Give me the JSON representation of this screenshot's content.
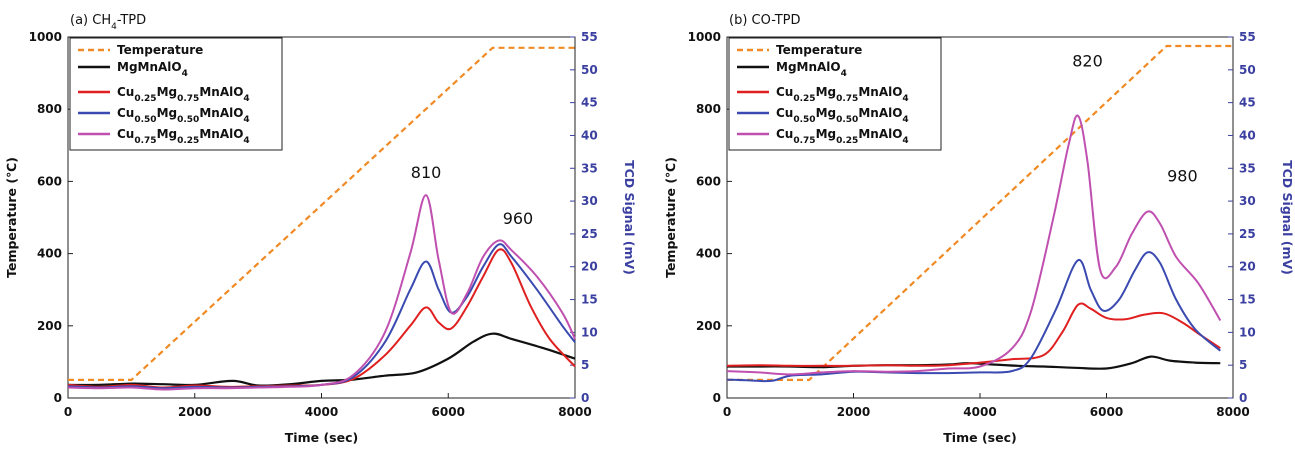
{
  "chart_data": [
    {
      "type": "line",
      "title": "(a) CH",
      "title_sub": "4",
      "title_rest": "-TPD",
      "xlabel": "Time (sec)",
      "ylabel": "Temperature (℃)",
      "y2label": "TCD Signal (mV)",
      "xlim": [
        0,
        8000
      ],
      "ylim": [
        0,
        1000
      ],
      "y2lim": [
        0,
        55
      ],
      "xticks": [
        0,
        2000,
        4000,
        6000,
        8000
      ],
      "yticks": [
        0,
        200,
        400,
        600,
        800,
        1000
      ],
      "y2ticks": [
        0,
        5,
        10,
        15,
        20,
        25,
        30,
        35,
        40,
        45,
        50,
        55
      ],
      "legend_position": "top-left",
      "temperature": {
        "name": "Temperature",
        "color": "#f08a24",
        "x": [
          0,
          1000,
          6700,
          8000
        ],
        "y": [
          50,
          50,
          970,
          970
        ]
      },
      "series": [
        {
          "name": [
            "MgMnAlO",
            "4",
            ""
          ],
          "color": "#111111",
          "x": [
            0,
            500,
            1000,
            1500,
            2000,
            2600,
            3000,
            3500,
            4000,
            4500,
            5000,
            5500,
            6000,
            6400,
            6700,
            7000,
            7500,
            8000
          ],
          "y": [
            2.0,
            2.0,
            2.2,
            2.1,
            2.0,
            2.6,
            1.9,
            2.1,
            2.6,
            2.8,
            3.4,
            3.9,
            6.0,
            8.6,
            9.8,
            9.0,
            7.6,
            6.0
          ]
        },
        {
          "name": [
            "Cu",
            "0.25",
            "Mg",
            "0.75",
            "MnAlO",
            "4"
          ],
          "color": "#e02020",
          "x": [
            0,
            500,
            1000,
            1500,
            2000,
            2500,
            3000,
            3500,
            4000,
            4500,
            5000,
            5400,
            5650,
            5850,
            6050,
            6300,
            6550,
            6800,
            7000,
            7300,
            7600,
            8000
          ],
          "y": [
            2.0,
            1.7,
            2.0,
            1.6,
            1.9,
            1.7,
            1.8,
            1.9,
            2.0,
            2.9,
            6.5,
            11.0,
            13.8,
            11.5,
            10.6,
            14.0,
            18.5,
            22.6,
            20.5,
            14.0,
            9.0,
            4.8
          ]
        },
        {
          "name": [
            "Cu",
            "0.50",
            "Mg",
            "0.50",
            "MnAlO",
            "4"
          ],
          "color": "#3a4ab0",
          "x": [
            0,
            500,
            1000,
            1500,
            2000,
            2500,
            3000,
            3500,
            4000,
            4500,
            5000,
            5400,
            5650,
            5850,
            6050,
            6300,
            6550,
            6800,
            7000,
            7400,
            7800,
            8000
          ],
          "y": [
            1.8,
            1.6,
            1.8,
            1.5,
            1.7,
            1.6,
            1.7,
            1.8,
            2.0,
            3.2,
            8.5,
            16.5,
            20.8,
            16.5,
            13.0,
            15.5,
            20.0,
            23.4,
            21.5,
            16.5,
            11.0,
            8.5
          ]
        },
        {
          "name": [
            "Cu",
            "0.75",
            "Mg",
            "0.25",
            "MnAlO",
            "4"
          ],
          "color": "#c050b0",
          "x": [
            0,
            500,
            1000,
            1500,
            2000,
            2500,
            3000,
            3500,
            4000,
            4500,
            5000,
            5400,
            5650,
            5850,
            6050,
            6300,
            6550,
            6800,
            7000,
            7400,
            7800,
            8000
          ],
          "y": [
            1.6,
            1.5,
            1.6,
            1.3,
            1.5,
            1.5,
            1.6,
            1.7,
            2.0,
            3.5,
            10.0,
            22.0,
            30.9,
            21.0,
            13.0,
            16.0,
            21.5,
            24.0,
            22.5,
            18.5,
            13.0,
            9.0
          ]
        }
      ],
      "annotations": [
        {
          "text": "810",
          "x": 5650,
          "y2": 33.5
        },
        {
          "text": "960",
          "x": 7100,
          "y2": 26.5
        }
      ]
    },
    {
      "type": "line",
      "title": "(b) CO-TPD",
      "title_sub": "",
      "title_rest": "",
      "xlabel": "Time (sec)",
      "ylabel": "Temperature (℃)",
      "y2label": "TCD Signal (mV)",
      "xlim": [
        0,
        8000
      ],
      "ylim": [
        0,
        1000
      ],
      "y2lim": [
        0,
        55
      ],
      "xticks": [
        0,
        2000,
        4000,
        6000,
        8000
      ],
      "yticks": [
        0,
        200,
        400,
        600,
        800,
        1000
      ],
      "y2ticks": [
        0,
        5,
        10,
        15,
        20,
        25,
        30,
        35,
        40,
        45,
        50,
        55
      ],
      "legend_position": "top-left",
      "temperature": {
        "name": "Temperature",
        "color": "#f08a24",
        "x": [
          0,
          1300,
          6950,
          8000
        ],
        "y": [
          50,
          50,
          975,
          975
        ]
      },
      "series": [
        {
          "name": [
            "MgMnAlO",
            "4",
            ""
          ],
          "color": "#111111",
          "x": [
            0,
            500,
            1000,
            1500,
            2000,
            2500,
            3000,
            3500,
            3800,
            4200,
            4600,
            5000,
            5500,
            6000,
            6400,
            6700,
            7000,
            7400,
            7800
          ],
          "y": [
            4.8,
            4.8,
            4.8,
            4.7,
            4.9,
            5.0,
            5.0,
            5.1,
            5.3,
            5.1,
            4.9,
            4.8,
            4.6,
            4.5,
            5.3,
            6.3,
            5.7,
            5.4,
            5.3
          ]
        },
        {
          "name": [
            "Cu",
            "0.25",
            "Mg",
            "0.75",
            "MnAlO",
            "4"
          ],
          "color": "#e02020",
          "x": [
            0,
            500,
            1000,
            1500,
            2000,
            2500,
            3000,
            3500,
            4000,
            4500,
            5000,
            5300,
            5550,
            5750,
            6000,
            6300,
            6600,
            6900,
            7200,
            7500,
            7800
          ],
          "y": [
            4.9,
            5.0,
            4.9,
            4.9,
            4.9,
            5.0,
            4.9,
            5.0,
            5.4,
            5.9,
            6.5,
            10.0,
            14.2,
            13.6,
            12.2,
            12.0,
            12.7,
            12.9,
            11.5,
            9.5,
            7.6
          ]
        },
        {
          "name": [
            "Cu",
            "0.50",
            "Mg",
            "0.50",
            "MnAlO",
            "4"
          ],
          "color": "#3a4ab0",
          "x": [
            0,
            300,
            700,
            1000,
            1500,
            2000,
            2500,
            3000,
            3500,
            4000,
            4500,
            4800,
            5200,
            5550,
            5750,
            5950,
            6200,
            6450,
            6650,
            6850,
            7100,
            7400,
            7800
          ],
          "y": [
            2.8,
            2.7,
            2.6,
            3.4,
            3.6,
            4.0,
            3.9,
            3.8,
            3.8,
            3.9,
            4.1,
            6.0,
            13.5,
            21.0,
            16.5,
            13.3,
            15.0,
            19.5,
            22.2,
            20.5,
            15.0,
            10.5,
            7.2
          ]
        },
        {
          "name": [
            "Cu",
            "0.75",
            "Mg",
            "0.25",
            "MnAlO",
            "4"
          ],
          "color": "#c050b0",
          "x": [
            0,
            500,
            1000,
            1500,
            2000,
            2500,
            3000,
            3500,
            4000,
            4500,
            4800,
            5150,
            5400,
            5550,
            5700,
            5900,
            6150,
            6400,
            6650,
            6850,
            7100,
            7450,
            7800
          ],
          "y": [
            4.1,
            3.9,
            3.6,
            3.9,
            4.1,
            4.0,
            4.1,
            4.5,
            4.8,
            7.5,
            13.0,
            27.0,
            38.5,
            43.0,
            36.0,
            19.5,
            20.0,
            25.0,
            28.4,
            26.5,
            21.5,
            17.5,
            11.8
          ]
        }
      ],
      "annotations": [
        {
          "text": "820",
          "x": 5700,
          "y2": 50.5
        },
        {
          "text": "980",
          "x": 7200,
          "y2": 33.0
        }
      ]
    }
  ]
}
